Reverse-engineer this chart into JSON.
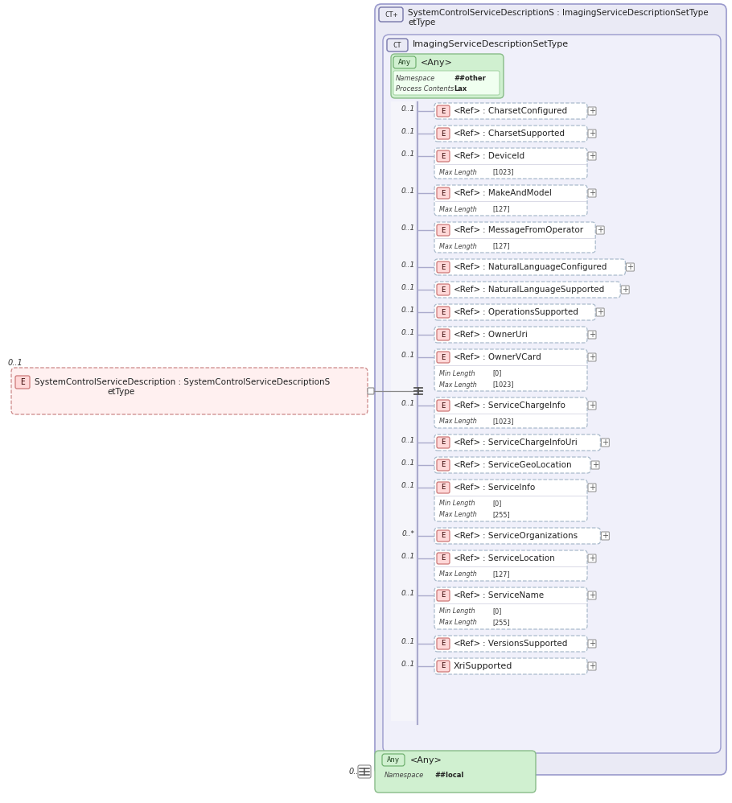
{
  "elements": [
    {
      "cardinality": "0..1",
      "prefix": "E",
      "ref": "<Ref>",
      "name": ": CharsetConfigured",
      "extra_info": null,
      "has_plus": true
    },
    {
      "cardinality": "0..1",
      "prefix": "E",
      "ref": "<Ref>",
      "name": ": CharsetSupported",
      "extra_info": null,
      "has_plus": true
    },
    {
      "cardinality": "0..1",
      "prefix": "E",
      "ref": "<Ref>",
      "name": ": DeviceId",
      "extra_info": [
        [
          "Max Length",
          "[1023]"
        ]
      ],
      "has_plus": true
    },
    {
      "cardinality": "0..1",
      "prefix": "E",
      "ref": "<Ref>",
      "name": ": MakeAndModel",
      "extra_info": [
        [
          "Max Length",
          "[127]"
        ]
      ],
      "has_plus": true
    },
    {
      "cardinality": "0..1",
      "prefix": "E",
      "ref": "<Ref>",
      "name": ": MessageFromOperator",
      "extra_info": [
        [
          "Max Length",
          "[127]"
        ]
      ],
      "has_plus": true
    },
    {
      "cardinality": "0..1",
      "prefix": "E",
      "ref": "<Ref>",
      "name": ": NaturalLanguageConfigured",
      "extra_info": null,
      "has_plus": true
    },
    {
      "cardinality": "0..1",
      "prefix": "E",
      "ref": "<Ref>",
      "name": ": NaturalLanguageSupported",
      "extra_info": null,
      "has_plus": true
    },
    {
      "cardinality": "0..1",
      "prefix": "E",
      "ref": "<Ref>",
      "name": ": OperationsSupported",
      "extra_info": null,
      "has_plus": true
    },
    {
      "cardinality": "0..1",
      "prefix": "E",
      "ref": "<Ref>",
      "name": ": OwnerUri",
      "extra_info": null,
      "has_plus": true
    },
    {
      "cardinality": "0..1",
      "prefix": "E",
      "ref": "<Ref>",
      "name": ": OwnerVCard",
      "extra_info": [
        [
          "Min Length",
          "[0]"
        ],
        [
          "Max Length",
          "[1023]"
        ]
      ],
      "has_plus": true
    },
    {
      "cardinality": "0..1",
      "prefix": "E",
      "ref": "<Ref>",
      "name": ": ServiceChargeInfo",
      "extra_info": [
        [
          "Max Length",
          "[1023]"
        ]
      ],
      "has_plus": true
    },
    {
      "cardinality": "0..1",
      "prefix": "E",
      "ref": "<Ref>",
      "name": ": ServiceChargeInfoUri",
      "extra_info": null,
      "has_plus": true
    },
    {
      "cardinality": "0..1",
      "prefix": "E",
      "ref": "<Ref>",
      "name": ": ServiceGeoLocation",
      "extra_info": null,
      "has_plus": true
    },
    {
      "cardinality": "0..1",
      "prefix": "E",
      "ref": "<Ref>",
      "name": ": ServiceInfo",
      "extra_info": [
        [
          "Min Length",
          "[0]"
        ],
        [
          "Max Length",
          "[255]"
        ]
      ],
      "has_plus": true
    },
    {
      "cardinality": "0..*",
      "prefix": "E",
      "ref": "<Ref>",
      "name": ": ServiceOrganizations",
      "extra_info": null,
      "has_plus": true
    },
    {
      "cardinality": "0..1",
      "prefix": "E",
      "ref": "<Ref>",
      "name": ": ServiceLocation",
      "extra_info": [
        [
          "Max Length",
          "[127]"
        ]
      ],
      "has_plus": true
    },
    {
      "cardinality": "0..1",
      "prefix": "E",
      "ref": "<Ref>",
      "name": ": ServiceName",
      "extra_info": [
        [
          "Min Length",
          "[0]"
        ],
        [
          "Max Length",
          "[255]"
        ]
      ],
      "has_plus": true
    },
    {
      "cardinality": "0..1",
      "prefix": "E",
      "ref": "<Ref>",
      "name": ": VersionsSupported",
      "extra_info": null,
      "has_plus": true
    },
    {
      "cardinality": "0..1",
      "prefix": "E",
      "ref": null,
      "name": "XriSupported",
      "extra_info": null,
      "has_plus": true
    }
  ]
}
